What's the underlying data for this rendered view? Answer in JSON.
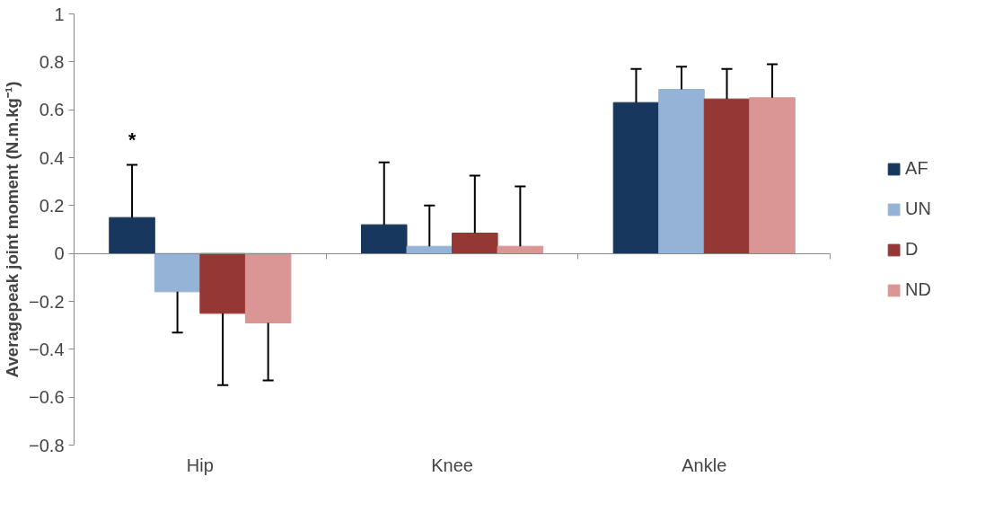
{
  "chart_data": {
    "type": "bar",
    "ylabel": "Averagepeak joint moment (N.m.kg⁻¹)",
    "categories": [
      "Hip",
      "Knee",
      "Ankle"
    ],
    "series": [
      {
        "name": "AF",
        "color": "#17375e",
        "values": [
          0.15,
          0.12,
          0.63
        ],
        "errors": [
          [
            0.15,
            0.37
          ],
          [
            0.12,
            0.38
          ],
          [
            0.63,
            0.77
          ]
        ]
      },
      {
        "name": "UN",
        "color": "#95b3d7",
        "values": [
          -0.16,
          0.03,
          0.685
        ],
        "errors": [
          [
            -0.33,
            -0.16
          ],
          [
            0.03,
            0.2
          ],
          [
            0.685,
            0.78
          ]
        ]
      },
      {
        "name": "D",
        "color": "#953735",
        "values": [
          -0.25,
          0.085,
          0.645
        ],
        "errors": [
          [
            -0.55,
            -0.25
          ],
          [
            0.085,
            0.325
          ],
          [
            0.645,
            0.77
          ]
        ]
      },
      {
        "name": "ND",
        "color": "#d99694",
        "values": [
          -0.29,
          0.03,
          0.65
        ],
        "errors": [
          [
            -0.53,
            -0.29
          ],
          [
            0.03,
            0.28
          ],
          [
            0.65,
            0.79
          ]
        ]
      }
    ],
    "annotations": [
      "*"
    ],
    "ylim": [
      -0.8,
      1
    ],
    "yticks": [
      -0.8,
      -0.6,
      -0.4,
      -0.2,
      0,
      0.2,
      0.4,
      0.6,
      0.8,
      1
    ],
    "legend": "right"
  }
}
